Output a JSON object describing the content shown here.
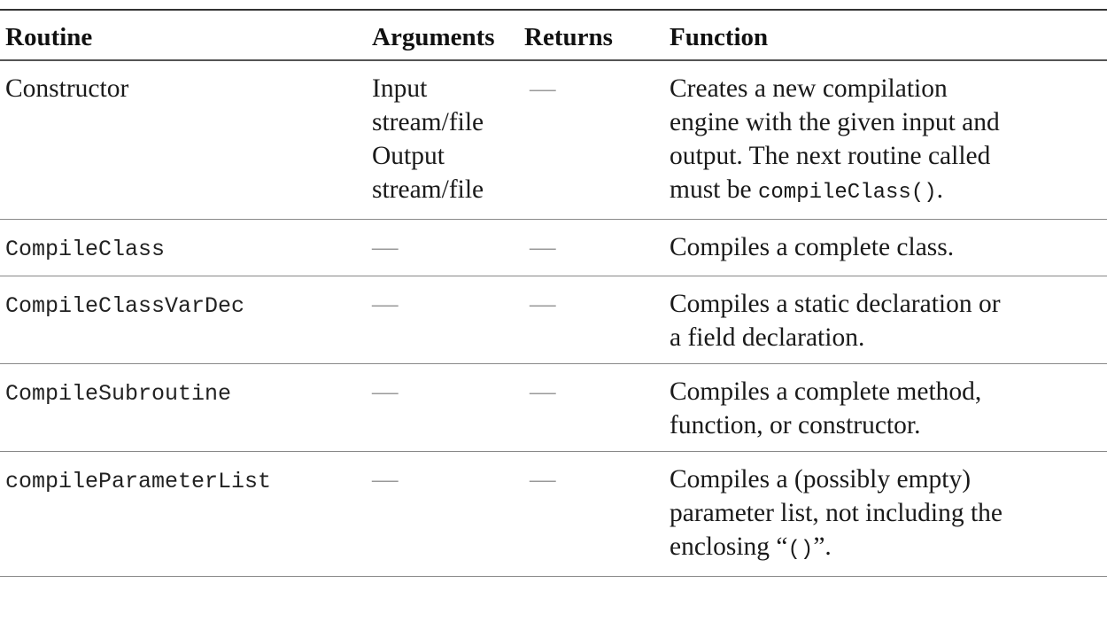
{
  "table": {
    "headers": {
      "routine": "Routine",
      "arguments": "Arguments",
      "returns": "Returns",
      "function": "Function"
    },
    "rows": [
      {
        "routine": "Constructor",
        "arguments": [
          "Input",
          "stream/file",
          "Output",
          "stream/file"
        ],
        "returns": "—",
        "function_lines": [
          "Creates a new compilation",
          "engine with the given input and",
          "output. The next routine called"
        ],
        "function_last_prefix": "must be ",
        "function_last_code": "compileClass()",
        "function_last_suffix": "."
      },
      {
        "routine": "CompileClass",
        "arguments": "—",
        "returns": "—",
        "function_lines": [
          "Compiles a complete class."
        ]
      },
      {
        "routine": "CompileClassVarDec",
        "arguments": "—",
        "returns": "—",
        "function_lines": [
          "Compiles a static declaration or",
          "a field declaration."
        ]
      },
      {
        "routine": "CompileSubroutine",
        "arguments": "—",
        "returns": "—",
        "function_lines": [
          "Compiles a complete method,",
          "function, or constructor."
        ]
      },
      {
        "routine": "compileParameterList",
        "arguments": "—",
        "returns": "—",
        "function_lines": [
          "Compiles a (possibly empty)",
          "parameter list, not including the"
        ],
        "function_last_prefix": "enclosing “",
        "function_last_code": "()",
        "function_last_suffix": "”."
      }
    ]
  }
}
